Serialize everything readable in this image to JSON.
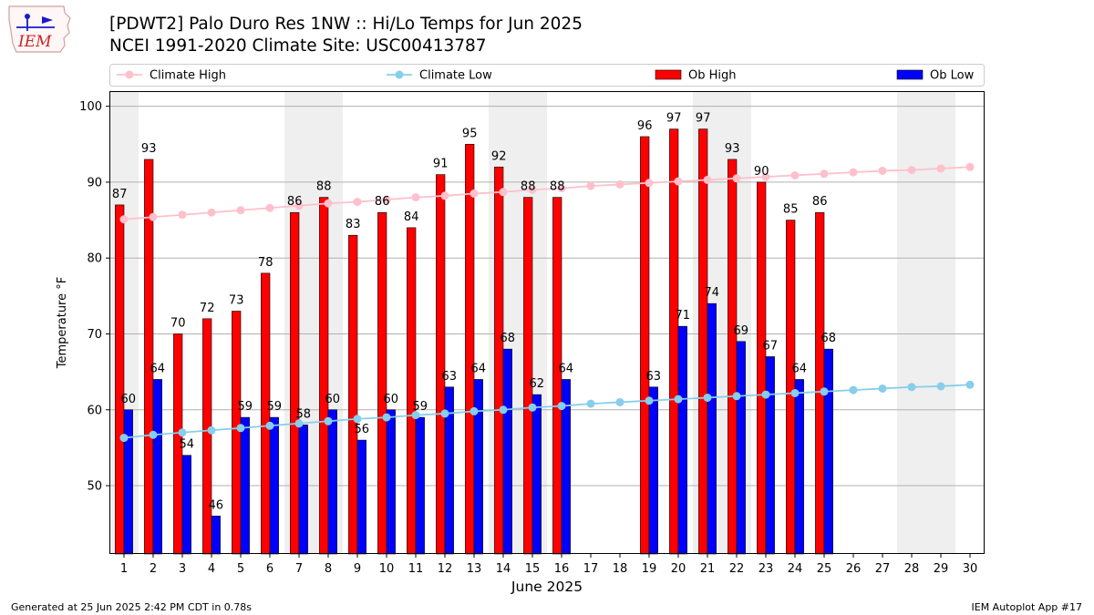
{
  "header": {
    "title_line1": "[PDWT2] Palo Duro Res 1NW :: Hi/Lo Temps for Jun 2025",
    "title_line2": "NCEI 1991-2020 Climate Site: USC00413787",
    "logo_text": "IEM"
  },
  "footer": {
    "generated": "Generated at 25 Jun 2025 2:42 PM CDT in 0.78s",
    "app": "IEM Autoplot App #17"
  },
  "colors": {
    "climate_high": "#ffc0cb",
    "climate_low": "#87ceeb",
    "ob_high": "#ff0000",
    "ob_low": "#0000ff",
    "weekend_shade": "#efefef",
    "grid": "#b0b0b0"
  },
  "chart_data": {
    "type": "bar",
    "title": "[PDWT2] Palo Duro Res 1NW :: Hi/Lo Temps for Jun 2025",
    "xlabel": "June 2025",
    "ylabel": "Temperature °F",
    "xlim": [
      0.5,
      30.5
    ],
    "ylim": [
      41,
      102
    ],
    "yticks": [
      50,
      60,
      70,
      80,
      90,
      100
    ],
    "grid": "horizontal",
    "legend_position": "top",
    "categories": [
      1,
      2,
      3,
      4,
      5,
      6,
      7,
      8,
      9,
      10,
      11,
      12,
      13,
      14,
      15,
      16,
      17,
      18,
      19,
      20,
      21,
      22,
      23,
      24,
      25,
      26,
      27,
      28,
      29,
      30
    ],
    "weekend_days": [
      1,
      7,
      8,
      14,
      15,
      21,
      22,
      28,
      29
    ],
    "legend": [
      {
        "name": "Climate High",
        "kind": "line"
      },
      {
        "name": "Climate Low",
        "kind": "line"
      },
      {
        "name": "Ob High",
        "kind": "bar"
      },
      {
        "name": "Ob Low",
        "kind": "bar"
      }
    ],
    "series": [
      {
        "name": "Ob High",
        "values": [
          87,
          93,
          70,
          72,
          73,
          78,
          86,
          88,
          83,
          86,
          84,
          91,
          95,
          92,
          88,
          88,
          null,
          null,
          96,
          97,
          97,
          93,
          90,
          85,
          86,
          null,
          null,
          null,
          null,
          null
        ]
      },
      {
        "name": "Ob Low",
        "values": [
          60,
          64,
          54,
          46,
          59,
          59,
          58,
          60,
          56,
          60,
          59,
          63,
          64,
          68,
          62,
          64,
          null,
          null,
          63,
          71,
          74,
          69,
          67,
          64,
          68,
          null,
          null,
          null,
          null,
          null
        ]
      },
      {
        "name": "Climate High",
        "values": [
          85.1,
          85.4,
          85.7,
          86.0,
          86.3,
          86.6,
          86.9,
          87.2,
          87.4,
          87.7,
          88.0,
          88.2,
          88.5,
          88.7,
          89.0,
          89.2,
          89.5,
          89.7,
          89.9,
          90.1,
          90.3,
          90.5,
          90.7,
          90.9,
          91.1,
          91.3,
          91.5,
          91.6,
          91.8,
          92.0
        ]
      },
      {
        "name": "Climate Low",
        "values": [
          56.3,
          56.7,
          57.0,
          57.3,
          57.6,
          57.9,
          58.2,
          58.5,
          58.8,
          59.0,
          59.3,
          59.5,
          59.8,
          60.0,
          60.3,
          60.5,
          60.8,
          61.0,
          61.2,
          61.4,
          61.6,
          61.8,
          62.0,
          62.2,
          62.4,
          62.6,
          62.8,
          63.0,
          63.1,
          63.3
        ]
      }
    ]
  }
}
